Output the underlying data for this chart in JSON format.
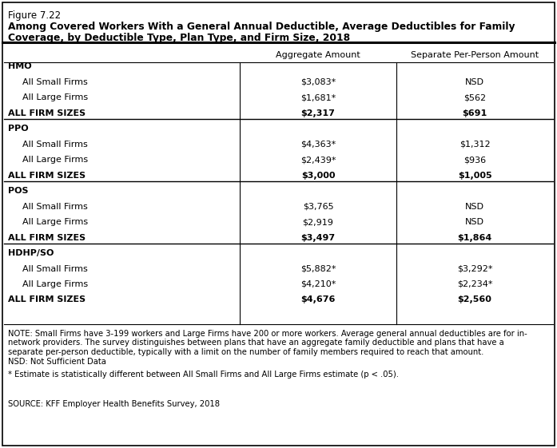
{
  "figure_label": "Figure 7.22",
  "title_line1": "Among Covered Workers With a General Annual Deductible, Average Deductibles for Family",
  "title_line2": "Coverage, by Deductible Type, Plan Type, and Firm Size, 2018",
  "col_headers": [
    "",
    "Aggregate Amount",
    "Separate Per-Person Amount"
  ],
  "rows": [
    {
      "label": "HMO",
      "type": "plan_header",
      "agg": "",
      "sep": ""
    },
    {
      "label": "All Small Firms",
      "type": "subrow",
      "agg": "$3,083*",
      "sep": "NSD"
    },
    {
      "label": "All Large Firms",
      "type": "subrow",
      "agg": "$1,681*",
      "sep": "$562"
    },
    {
      "label": "ALL FIRM SIZES",
      "type": "total",
      "agg": "$2,317",
      "sep": "$691"
    },
    {
      "label": "PPO",
      "type": "plan_header",
      "agg": "",
      "sep": ""
    },
    {
      "label": "All Small Firms",
      "type": "subrow",
      "agg": "$4,363*",
      "sep": "$1,312"
    },
    {
      "label": "All Large Firms",
      "type": "subrow",
      "agg": "$2,439*",
      "sep": "$936"
    },
    {
      "label": "ALL FIRM SIZES",
      "type": "total",
      "agg": "$3,000",
      "sep": "$1,005"
    },
    {
      "label": "POS",
      "type": "plan_header",
      "agg": "",
      "sep": ""
    },
    {
      "label": "All Small Firms",
      "type": "subrow",
      "agg": "$3,765",
      "sep": "NSD"
    },
    {
      "label": "All Large Firms",
      "type": "subrow",
      "agg": "$2,919",
      "sep": "NSD"
    },
    {
      "label": "ALL FIRM SIZES",
      "type": "total",
      "agg": "$3,497",
      "sep": "$1,864"
    },
    {
      "label": "HDHP/SO",
      "type": "plan_header",
      "agg": "",
      "sep": ""
    },
    {
      "label": "All Small Firms",
      "type": "subrow",
      "agg": "$5,882*",
      "sep": "$3,292*"
    },
    {
      "label": "All Large Firms",
      "type": "subrow",
      "agg": "$4,210*",
      "sep": "$2,234*"
    },
    {
      "label": "ALL FIRM SIZES",
      "type": "total",
      "agg": "$4,676",
      "sep": "$2,560"
    }
  ],
  "note1": "NOTE: Small Firms have 3-199 workers and Large Firms have 200 or more workers. Average general annual deductibles are for in-",
  "note2": "network providers. The survey distinguishes between plans that have an aggregate family deductible and plans that have a",
  "note3": "separate per-person deductible, typically with a limit on the number of family members required to reach that amount.",
  "note4": "NSD: Not Sufficient Data",
  "footnote": "* Estimate is statistically different between All Small Firms and All Large Firms estimate (p < .05).",
  "source": "SOURCE: KFF Employer Health Benefits Survey, 2018",
  "background_color": "#ffffff",
  "text_color": "#000000",
  "border_color": "#000000"
}
